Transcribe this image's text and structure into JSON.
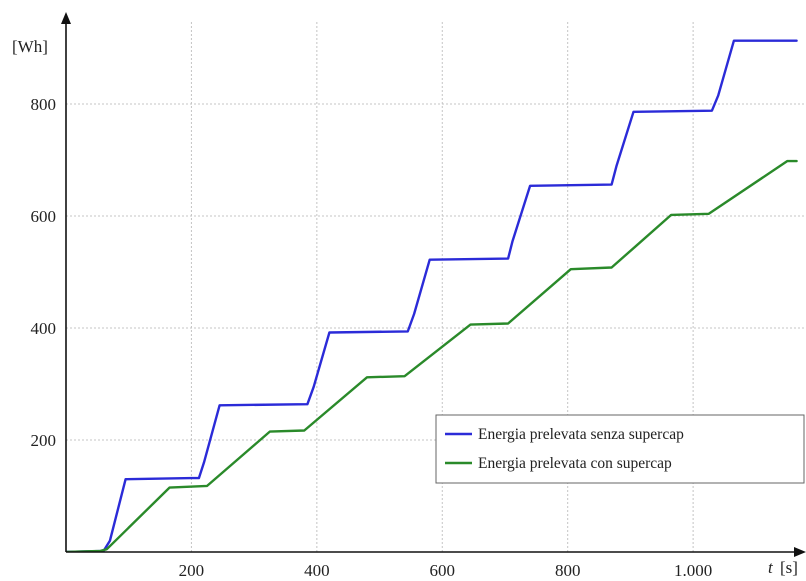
{
  "chart_data": {
    "type": "line",
    "xlabel": "t",
    "xlabel_unit": "[s]",
    "ylabel": "[Wh]",
    "xlim": [
      0,
      1180
    ],
    "ylim": [
      0,
      950
    ],
    "xticks": [
      200,
      400,
      600,
      800,
      1000
    ],
    "xtick_labels": [
      "200",
      "400",
      "600",
      "800",
      "1.000"
    ],
    "yticks": [
      200,
      400,
      600,
      800
    ],
    "ytick_labels": [
      "200",
      "400",
      "600",
      "800"
    ],
    "grid": true,
    "legend_position": "bottom-right",
    "series": [
      {
        "name": "Energia prelevata senza supercap",
        "color": "#2b2bd8",
        "x": [
          0,
          60,
          70,
          95,
          200,
          212,
          220,
          245,
          385,
          395,
          420,
          545,
          555,
          580,
          705,
          712,
          740,
          870,
          878,
          905,
          1030,
          1040,
          1065,
          1165
        ],
        "y": [
          0,
          2,
          20,
          130,
          132,
          132,
          160,
          262,
          264,
          295,
          392,
          394,
          425,
          522,
          524,
          555,
          654,
          656,
          690,
          786,
          788,
          815,
          913,
          913
        ]
      },
      {
        "name": "Energia prelevata con supercap",
        "color": "#2a8a2a",
        "x": [
          0,
          55,
          65,
          165,
          225,
          325,
          380,
          480,
          540,
          645,
          705,
          805,
          870,
          965,
          1025,
          1150,
          1165
        ],
        "y": [
          0,
          2,
          5,
          115,
          118,
          215,
          217,
          312,
          314,
          406,
          408,
          505,
          508,
          602,
          604,
          698,
          698
        ]
      }
    ]
  }
}
